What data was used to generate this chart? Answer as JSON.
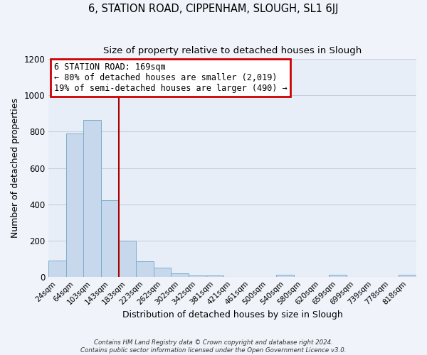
{
  "title": "6, STATION ROAD, CIPPENHAM, SLOUGH, SL1 6JJ",
  "subtitle": "Size of property relative to detached houses in Slough",
  "xlabel": "Distribution of detached houses by size in Slough",
  "ylabel": "Number of detached properties",
  "categories": [
    "24sqm",
    "64sqm",
    "103sqm",
    "143sqm",
    "183sqm",
    "223sqm",
    "262sqm",
    "302sqm",
    "342sqm",
    "381sqm",
    "421sqm",
    "461sqm",
    "500sqm",
    "540sqm",
    "580sqm",
    "620sqm",
    "659sqm",
    "699sqm",
    "739sqm",
    "778sqm",
    "818sqm"
  ],
  "bar_heights": [
    90,
    790,
    865,
    420,
    200,
    85,
    50,
    18,
    5,
    5,
    0,
    0,
    0,
    10,
    0,
    0,
    10,
    0,
    0,
    0,
    10
  ],
  "bar_color": "#c8d8ec",
  "bar_edge_color": "#7aaecc",
  "property_line_color": "#aa0000",
  "ylim": [
    0,
    1200
  ],
  "yticks": [
    0,
    200,
    400,
    600,
    800,
    1000,
    1200
  ],
  "annotation_title": "6 STATION ROAD: 169sqm",
  "annotation_line1": "← 80% of detached houses are smaller (2,019)",
  "annotation_line2": "19% of semi-detached houses are larger (490) →",
  "annotation_box_color": "#cc0000",
  "footer_line1": "Contains HM Land Registry data © Crown copyright and database right 2024.",
  "footer_line2": "Contains public sector information licensed under the Open Government Licence v3.0.",
  "background_color": "#f0f4fa",
  "plot_bg_color": "#e8eef8",
  "grid_color": "#c8d0e0"
}
